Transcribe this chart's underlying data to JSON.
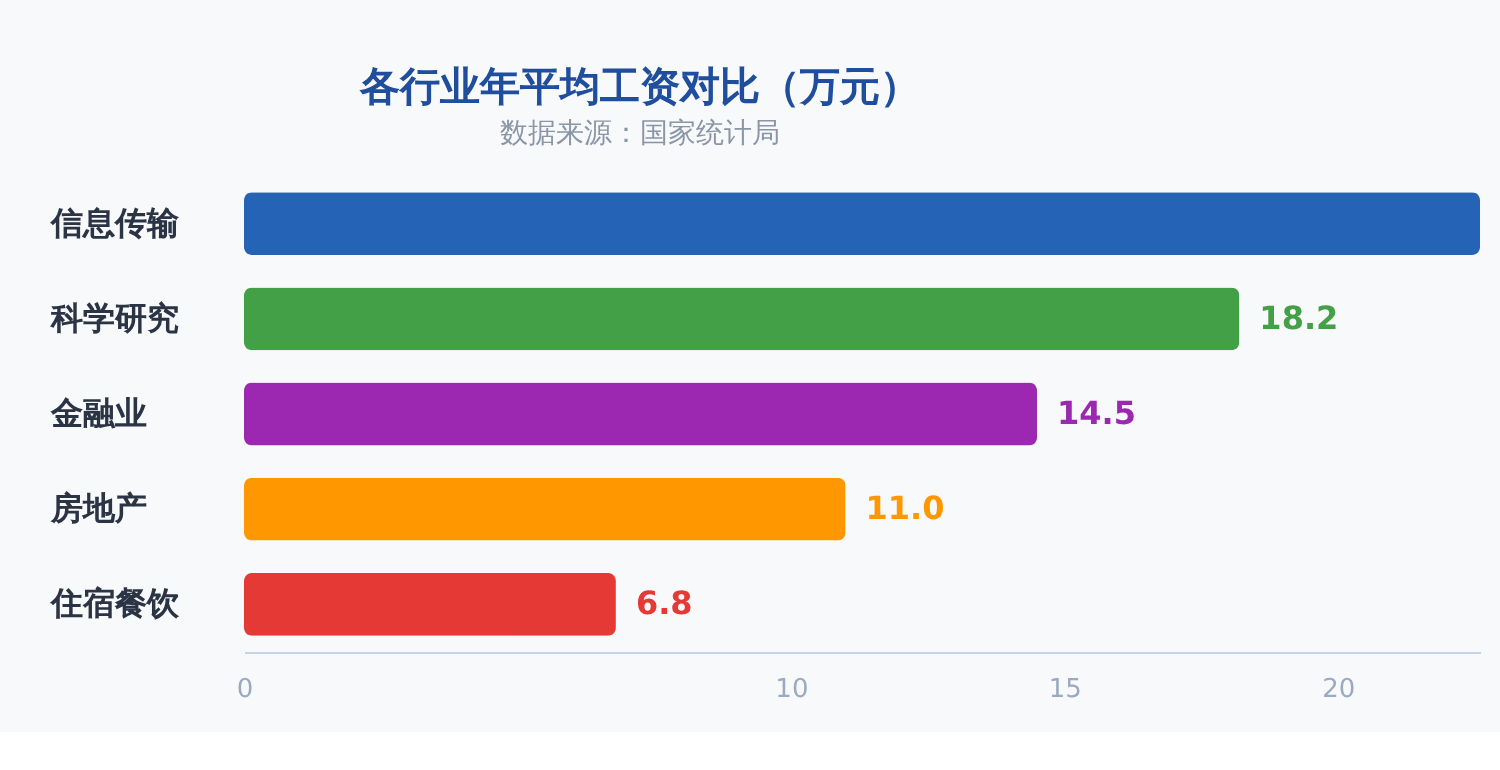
{
  "chart_data": {
    "type": "bar",
    "orientation": "horizontal",
    "title": "各行业年平均工资对比（万元）",
    "subtitle": "数据来源：国家统计局",
    "categories": [
      "信息传输",
      "科学研究",
      "金融业",
      "房地产",
      "住宿餐饮"
    ],
    "values": [
      22.6,
      18.2,
      14.5,
      11.0,
      6.8
    ],
    "value_labels": [
      null,
      "18.2",
      "14.5",
      "11.0",
      "6.8"
    ],
    "colors": [
      "#2563b6",
      "#43a047",
      "#9c27b0",
      "#ff9800",
      "#e53935"
    ],
    "xlim": [
      0,
      22.6
    ],
    "xticks": [
      0,
      10,
      15,
      20
    ],
    "grid": false
  }
}
